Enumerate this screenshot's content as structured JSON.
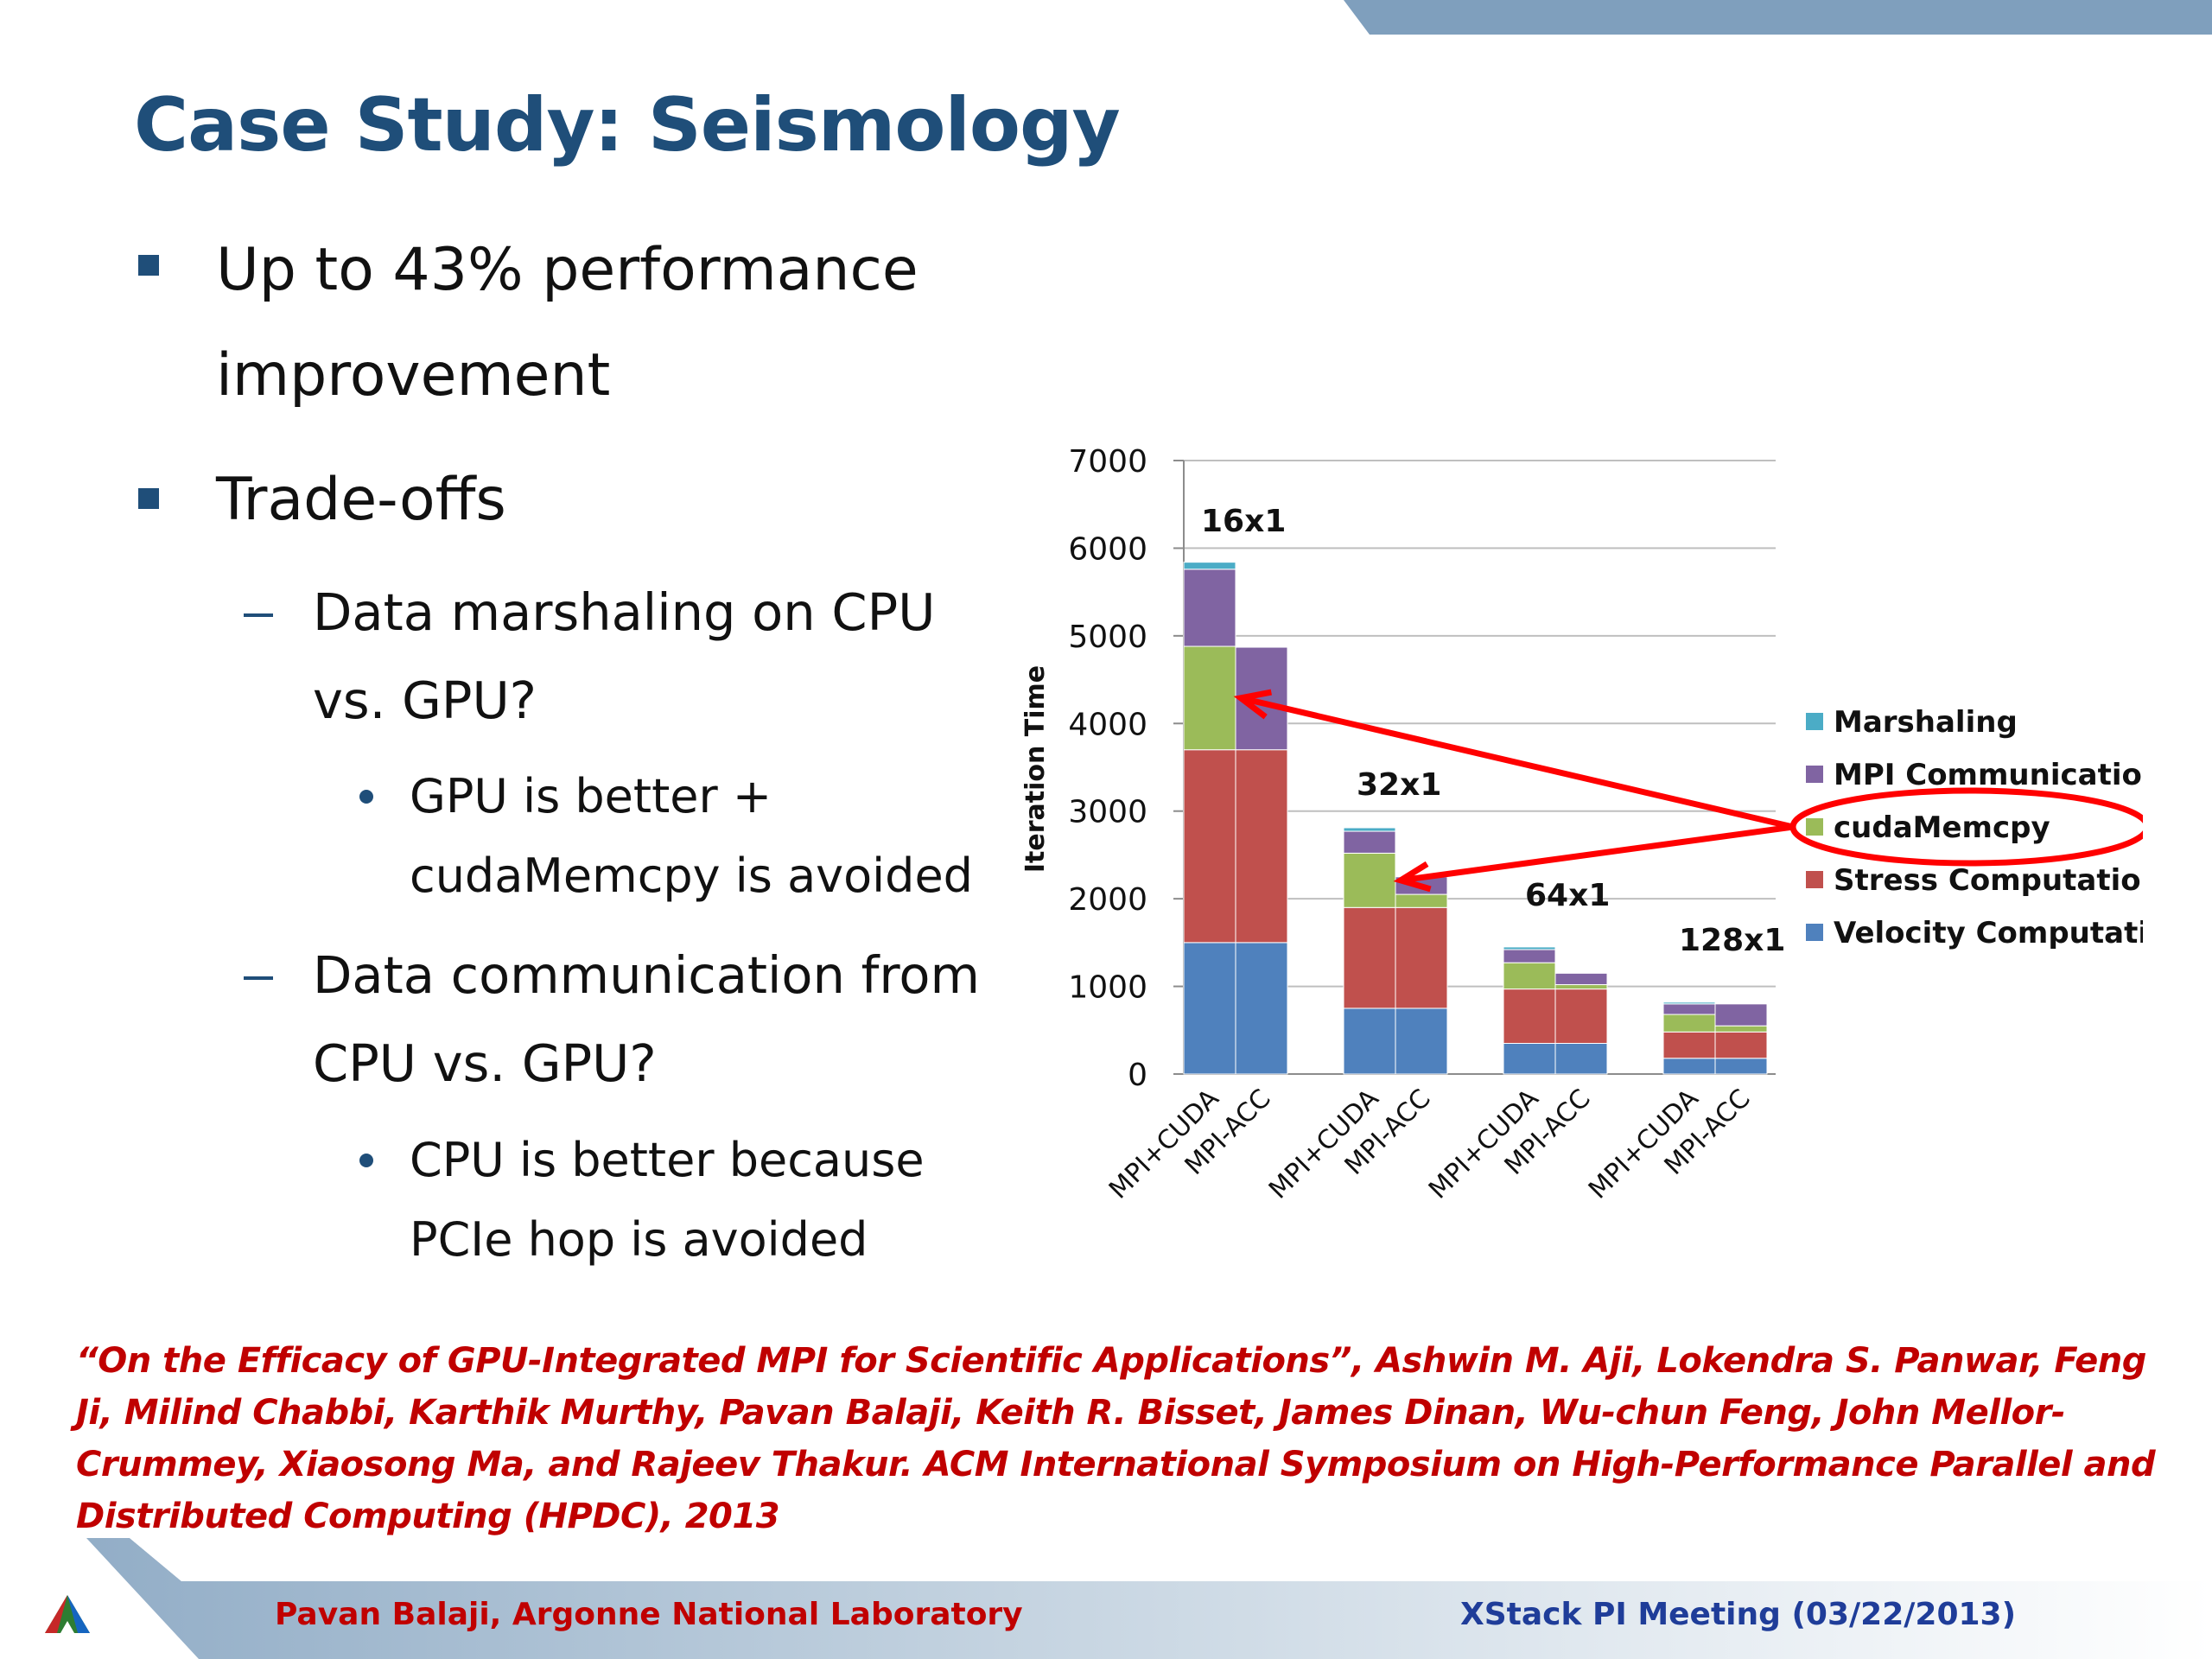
{
  "slide": {
    "title": "Case Study: Seismology",
    "bullets": [
      {
        "level": 1,
        "lines": [
          "Up to 43% performance",
          "improvement"
        ]
      },
      {
        "level": 1,
        "lines": [
          "Trade-offs"
        ]
      },
      {
        "level": 2,
        "lines": [
          "Data marshaling on CPU",
          "vs. GPU?"
        ]
      },
      {
        "level": 3,
        "lines": [
          "GPU is better +",
          "cudaMemcpy is avoided"
        ]
      },
      {
        "level": 2,
        "lines": [
          "Data communication from",
          "CPU vs. GPU?"
        ]
      },
      {
        "level": 3,
        "lines": [
          "CPU is better because",
          "PCIe hop is avoided"
        ]
      }
    ],
    "citation": "“On the Efficacy of GPU-Integrated MPI for Scientific Applications”, Ashwin M. Aji, Lokendra S. Panwar, Feng Ji, Milind Chabbi, Karthik Murthy, Pavan Balaji, Keith R. Bisset, James Dinan, Wu-chun Feng, John Mellor-Crummey, Xiaosong Ma, and Rajeev Thakur.  ACM International Symposium on High-Performance Parallel and Distributed Computing (HPDC), 2013",
    "footer_left": "Pavan Balaji, Argonne National Laboratory",
    "footer_right": "XStack PI Meeting (03/22/2013)"
  },
  "colors": {
    "title": "#1f4e79",
    "citation": "#c00000",
    "footer_right": "#1f3d99",
    "arrow": "#ff0000",
    "series": {
      "Velocity Computation": "#4f81bd",
      "Stress Computation": "#c0504d",
      "cudaMemcpy": "#9bbb59",
      "MPI Communication": "#8064a2",
      "Marshaling": "#4bacc6"
    }
  },
  "chart_data": {
    "type": "bar",
    "stacked": true,
    "ylabel": "Iteration Time",
    "ylim": [
      0,
      7000
    ],
    "yticks": [
      0,
      1000,
      2000,
      3000,
      4000,
      5000,
      6000,
      7000
    ],
    "grid": true,
    "legend_position": "right",
    "groups": [
      "16x1",
      "32x1",
      "64x1",
      "128x1"
    ],
    "bar_labels": [
      "MPI+CUDA",
      "MPI-ACC"
    ],
    "series": [
      {
        "name": "Velocity Computation",
        "values": [
          [
            1500,
            1500
          ],
          [
            750,
            750
          ],
          [
            350,
            350
          ],
          [
            180,
            180
          ]
        ]
      },
      {
        "name": "Stress Computation",
        "values": [
          [
            2200,
            2200
          ],
          [
            1150,
            1150
          ],
          [
            620,
            620
          ],
          [
            300,
            300
          ]
        ]
      },
      {
        "name": "cudaMemcpy",
        "values": [
          [
            1180,
            0
          ],
          [
            620,
            150
          ],
          [
            300,
            50
          ],
          [
            200,
            70
          ]
        ]
      },
      {
        "name": "MPI Communication",
        "values": [
          [
            880,
            1170
          ],
          [
            250,
            200
          ],
          [
            150,
            130
          ],
          [
            120,
            250
          ]
        ]
      },
      {
        "name": "Marshaling",
        "values": [
          [
            80,
            0
          ],
          [
            40,
            0
          ],
          [
            30,
            0
          ],
          [
            20,
            0
          ]
        ]
      }
    ],
    "legend_order": [
      "Marshaling",
      "MPI Communication",
      "cudaMemcpy",
      "Stress Computation",
      "Velocity Computation"
    ],
    "annotations": [
      {
        "type": "ellipse",
        "target": "legend:cudaMemcpy"
      },
      {
        "type": "arrow",
        "from": "legend:cudaMemcpy",
        "to": "16x1:MPI+CUDA:cudaMemcpy"
      },
      {
        "type": "arrow",
        "from": "legend:cudaMemcpy",
        "to": "32x1:MPI+CUDA:cudaMemcpy"
      }
    ]
  }
}
